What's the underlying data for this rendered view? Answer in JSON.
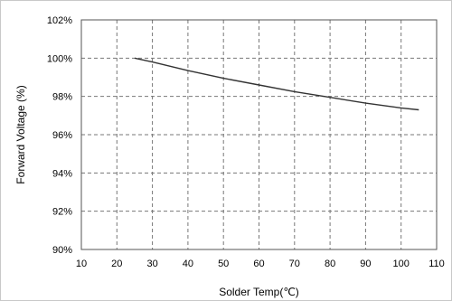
{
  "chart_data": {
    "type": "line",
    "title": "",
    "xlabel": "Solder Temp(℃)",
    "ylabel": "Forward Voltage (%)",
    "xlim": [
      10,
      110
    ],
    "ylim": [
      90,
      102
    ],
    "x_ticks": [
      10,
      20,
      30,
      40,
      50,
      60,
      70,
      80,
      90,
      100,
      110
    ],
    "x_tick_labels": [
      "10",
      "20",
      "30",
      "40",
      "50",
      "60",
      "70",
      "80",
      "90",
      "100",
      "110"
    ],
    "y_ticks": [
      90,
      92,
      94,
      96,
      98,
      100,
      102
    ],
    "y_tick_labels": [
      "90%",
      "92%",
      "94%",
      "96%",
      "98%",
      "100%",
      "102%"
    ],
    "grid": true,
    "series": [
      {
        "color": "#333333",
        "x": [
          25,
          30,
          40,
          50,
          60,
          70,
          80,
          90,
          100,
          105
        ],
        "y": [
          100.0,
          99.8,
          99.35,
          98.95,
          98.6,
          98.25,
          97.95,
          97.65,
          97.4,
          97.3
        ]
      }
    ]
  }
}
